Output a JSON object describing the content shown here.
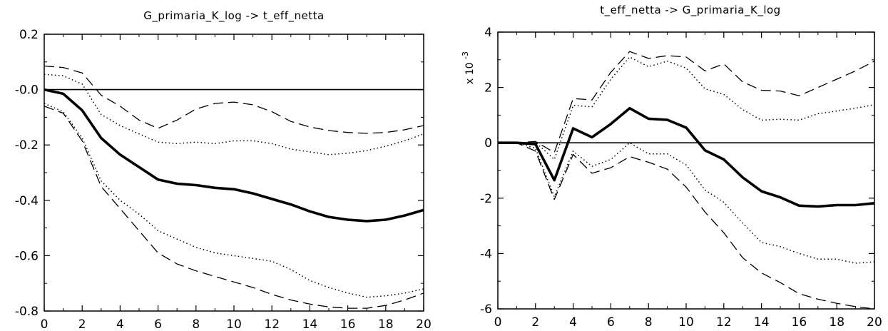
{
  "chart_data": [
    {
      "type": "line",
      "title": "G_primaria_K_log -> t_eff_netta",
      "xlabel": "",
      "ylabel": "",
      "multiplier_label": "",
      "xlim": [
        0,
        20
      ],
      "ylim": [
        -0.8,
        0.2
      ],
      "xticks": [
        0,
        2,
        4,
        6,
        8,
        10,
        12,
        14,
        16,
        18,
        20
      ],
      "yticks": [
        -0.8,
        -0.6,
        -0.4,
        -0.2,
        0.0,
        0.2
      ],
      "ytick_labels": [
        "-0.8",
        "-0.6",
        "-0.4",
        "-0.2",
        "-0.0",
        "0.2"
      ],
      "grid": false,
      "legend": "none",
      "x": [
        0,
        1,
        2,
        3,
        4,
        5,
        6,
        7,
        8,
        9,
        10,
        11,
        12,
        13,
        14,
        15,
        16,
        17,
        18,
        19,
        20
      ],
      "series": [
        {
          "style": "solid-thick",
          "values": [
            0.0,
            -0.015,
            -0.075,
            -0.175,
            -0.235,
            -0.28,
            -0.325,
            -0.34,
            -0.345,
            -0.355,
            -0.36,
            -0.375,
            -0.395,
            -0.415,
            -0.44,
            -0.46,
            -0.47,
            -0.475,
            -0.47,
            -0.455,
            -0.435
          ]
        },
        {
          "style": "dashed",
          "values": [
            0.085,
            0.08,
            0.06,
            -0.02,
            -0.06,
            -0.11,
            -0.14,
            -0.11,
            -0.07,
            -0.05,
            -0.045,
            -0.055,
            -0.08,
            -0.115,
            -0.135,
            -0.148,
            -0.155,
            -0.158,
            -0.155,
            -0.145,
            -0.13
          ]
        },
        {
          "style": "dotted",
          "values": [
            0.055,
            0.05,
            0.02,
            -0.09,
            -0.13,
            -0.16,
            -0.19,
            -0.195,
            -0.19,
            -0.195,
            -0.185,
            -0.185,
            -0.195,
            -0.215,
            -0.225,
            -0.235,
            -0.23,
            -0.22,
            -0.205,
            -0.185,
            -0.16
          ]
        },
        {
          "style": "dotted",
          "values": [
            -0.05,
            -0.08,
            -0.175,
            -0.33,
            -0.4,
            -0.45,
            -0.51,
            -0.54,
            -0.57,
            -0.59,
            -0.6,
            -0.61,
            -0.62,
            -0.65,
            -0.69,
            -0.715,
            -0.735,
            -0.75,
            -0.745,
            -0.735,
            -0.72
          ]
        },
        {
          "style": "dashed",
          "values": [
            -0.06,
            -0.085,
            -0.185,
            -0.35,
            -0.43,
            -0.51,
            -0.59,
            -0.63,
            -0.655,
            -0.675,
            -0.695,
            -0.715,
            -0.74,
            -0.76,
            -0.775,
            -0.785,
            -0.79,
            -0.79,
            -0.78,
            -0.76,
            -0.735
          ]
        }
      ]
    },
    {
      "type": "line",
      "title": "t_eff_netta -> G_primaria_K_log",
      "xlabel": "",
      "ylabel": "",
      "multiplier_label": "x 10",
      "multiplier_exponent": "-3",
      "xlim": [
        0,
        20
      ],
      "ylim": [
        -6,
        4
      ],
      "xticks": [
        0,
        2,
        4,
        6,
        8,
        10,
        12,
        14,
        16,
        18,
        20
      ],
      "yticks": [
        -6,
        -4,
        -2,
        0,
        2,
        4
      ],
      "ytick_labels": [
        "-6",
        "-4",
        "-2",
        "0",
        "2",
        "4"
      ],
      "grid": false,
      "legend": "none",
      "x": [
        0,
        1,
        2,
        3,
        4,
        5,
        6,
        7,
        8,
        9,
        10,
        11,
        12,
        13,
        14,
        15,
        16,
        17,
        18,
        19,
        20
      ],
      "series": [
        {
          "style": "solid-thick",
          "values": [
            0.0,
            0.0,
            -0.05,
            -1.35,
            0.52,
            0.2,
            0.68,
            1.25,
            0.87,
            0.83,
            0.55,
            -0.27,
            -0.6,
            -1.25,
            -1.75,
            -1.97,
            -2.27,
            -2.3,
            -2.25,
            -2.25,
            -2.18
          ]
        },
        {
          "style": "dashed",
          "values": [
            0.0,
            0.0,
            0.05,
            -0.35,
            1.6,
            1.55,
            2.55,
            3.3,
            3.05,
            3.15,
            3.1,
            2.6,
            2.85,
            2.2,
            1.9,
            1.87,
            1.7,
            2.0,
            2.3,
            2.6,
            2.95
          ]
        },
        {
          "style": "dotted",
          "values": [
            0.0,
            0.0,
            0.02,
            -0.6,
            1.35,
            1.3,
            2.3,
            3.1,
            2.75,
            2.95,
            2.7,
            1.95,
            1.75,
            1.2,
            0.82,
            0.85,
            0.82,
            1.05,
            1.15,
            1.25,
            1.38
          ]
        },
        {
          "style": "dotted",
          "values": [
            0.0,
            0.0,
            -0.2,
            -1.95,
            -0.3,
            -0.85,
            -0.6,
            0.0,
            -0.4,
            -0.4,
            -0.8,
            -1.7,
            -2.15,
            -2.9,
            -3.6,
            -3.75,
            -4.0,
            -4.2,
            -4.2,
            -4.35,
            -4.3
          ]
        },
        {
          "style": "dashed",
          "values": [
            0.0,
            0.0,
            -0.3,
            -2.05,
            -0.42,
            -1.1,
            -0.9,
            -0.5,
            -0.7,
            -0.95,
            -1.6,
            -2.5,
            -3.25,
            -4.15,
            -4.7,
            -5.05,
            -5.45,
            -5.65,
            -5.8,
            -5.92,
            -6.0
          ]
        }
      ]
    }
  ]
}
